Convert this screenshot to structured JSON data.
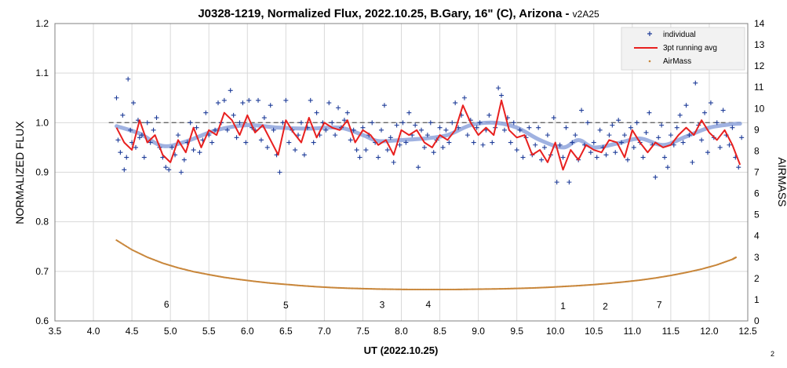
{
  "chart_data": {
    "type": "scatter",
    "title": "J0328-1219, Normalized Flux, 2022.10.25, B.Gary, 16\" (C), Arizona - ",
    "title_version": "v2A25",
    "xlabel": "UT (2022.10.25)",
    "ylabel": "NORMALIZED FLUX",
    "y2label": "AIRMASS",
    "xlim": [
      3.5,
      12.5
    ],
    "ylim": [
      0.6,
      1.2
    ],
    "y2lim": [
      0,
      14
    ],
    "x_ticks": [
      "3.5",
      "4.0",
      "4.5",
      "5.0",
      "5.5",
      "6.0",
      "6.5",
      "7.0",
      "7.5",
      "8.0",
      "8.5",
      "9.0",
      "9.5",
      "10.0",
      "10.5",
      "11.0",
      "11.5",
      "12.0",
      "12.5"
    ],
    "y_ticks": [
      "0.6",
      "0.7",
      "0.8",
      "0.9",
      "1.0",
      "1.1",
      "1.2"
    ],
    "y2_ticks": [
      "0",
      "1",
      "2",
      "3",
      "4",
      "5",
      "6",
      "7",
      "8",
      "9",
      "10",
      "11",
      "12",
      "13",
      "14"
    ],
    "grid": true,
    "legend_position": "top-right",
    "legend": [
      {
        "label": "individual",
        "color": "#1f3d99",
        "marker": "plus"
      },
      {
        "label": "3pt running avg",
        "color": "#e8201f",
        "marker": "line"
      },
      {
        "label": "AirMass",
        "color": "#c8863a",
        "marker": "dot"
      }
    ],
    "reference_line": {
      "y": 1.0,
      "style": "dashed",
      "color": "#666666"
    },
    "model_curve": {
      "color": "#8fa4dc",
      "x": [
        4.3,
        4.6,
        4.9,
        5.2,
        5.6,
        6.0,
        6.4,
        6.8,
        7.2,
        7.5,
        7.7,
        8.0,
        8.3,
        8.6,
        8.9,
        9.2,
        9.5,
        9.8,
        10.1,
        10.3,
        10.5,
        10.8,
        11.1,
        11.4,
        11.7,
        12.0,
        12.3,
        12.4
      ],
      "y": [
        0.993,
        0.978,
        0.953,
        0.962,
        0.985,
        0.995,
        0.99,
        0.988,
        0.99,
        0.975,
        0.963,
        0.965,
        0.968,
        0.975,
        0.995,
        1.0,
        0.99,
        0.965,
        0.95,
        0.965,
        0.95,
        0.958,
        0.968,
        0.955,
        0.972,
        0.99,
        0.997,
        0.998
      ]
    },
    "running_avg_points": [
      [
        4.3,
        0.99
      ],
      [
        4.4,
        0.96
      ],
      [
        4.5,
        0.945
      ],
      [
        4.6,
        1.005
      ],
      [
        4.7,
        0.96
      ],
      [
        4.8,
        0.975
      ],
      [
        4.9,
        0.935
      ],
      [
        5.0,
        0.92
      ],
      [
        5.1,
        0.965
      ],
      [
        5.2,
        0.94
      ],
      [
        5.3,
        0.99
      ],
      [
        5.4,
        0.95
      ],
      [
        5.5,
        0.985
      ],
      [
        5.6,
        0.975
      ],
      [
        5.7,
        1.02
      ],
      [
        5.8,
        1.005
      ],
      [
        5.9,
        0.975
      ],
      [
        6.0,
        1.015
      ],
      [
        6.1,
        0.98
      ],
      [
        6.2,
        0.995
      ],
      [
        6.3,
        0.965
      ],
      [
        6.4,
        0.935
      ],
      [
        6.5,
        1.005
      ],
      [
        6.6,
        0.98
      ],
      [
        6.7,
        0.96
      ],
      [
        6.8,
        1.01
      ],
      [
        6.9,
        0.97
      ],
      [
        7.0,
        1.0
      ],
      [
        7.1,
        0.99
      ],
      [
        7.2,
        0.985
      ],
      [
        7.3,
        1.005
      ],
      [
        7.4,
        0.96
      ],
      [
        7.5,
        0.985
      ],
      [
        7.6,
        0.975
      ],
      [
        7.7,
        0.955
      ],
      [
        7.8,
        0.965
      ],
      [
        7.9,
        0.935
      ],
      [
        8.0,
        0.985
      ],
      [
        8.1,
        0.975
      ],
      [
        8.2,
        0.985
      ],
      [
        8.3,
        0.96
      ],
      [
        8.4,
        0.95
      ],
      [
        8.5,
        0.975
      ],
      [
        8.6,
        0.965
      ],
      [
        8.7,
        0.985
      ],
      [
        8.8,
        1.035
      ],
      [
        8.9,
        1.0
      ],
      [
        9.0,
        0.975
      ],
      [
        9.1,
        0.99
      ],
      [
        9.2,
        0.975
      ],
      [
        9.3,
        1.045
      ],
      [
        9.4,
        0.985
      ],
      [
        9.5,
        0.97
      ],
      [
        9.6,
        0.975
      ],
      [
        9.7,
        0.935
      ],
      [
        9.8,
        0.945
      ],
      [
        9.9,
        0.92
      ],
      [
        10.0,
        0.96
      ],
      [
        10.1,
        0.905
      ],
      [
        10.2,
        0.945
      ],
      [
        10.3,
        0.925
      ],
      [
        10.4,
        0.955
      ],
      [
        10.5,
        0.945
      ],
      [
        10.6,
        0.94
      ],
      [
        10.7,
        0.965
      ],
      [
        10.8,
        0.96
      ],
      [
        10.9,
        0.93
      ],
      [
        11.0,
        0.985
      ],
      [
        11.1,
        0.96
      ],
      [
        11.2,
        0.94
      ],
      [
        11.3,
        0.96
      ],
      [
        11.4,
        0.95
      ],
      [
        11.5,
        0.955
      ],
      [
        11.6,
        0.975
      ],
      [
        11.7,
        0.99
      ],
      [
        11.8,
        0.975
      ],
      [
        11.9,
        1.005
      ],
      [
        12.0,
        0.98
      ],
      [
        12.1,
        0.965
      ],
      [
        12.2,
        0.985
      ],
      [
        12.3,
        0.955
      ],
      [
        12.4,
        0.915
      ]
    ],
    "airmass_points": [
      [
        4.3,
        3.8
      ],
      [
        4.5,
        3.35
      ],
      [
        4.7,
        3.0
      ],
      [
        4.9,
        2.72
      ],
      [
        5.1,
        2.5
      ],
      [
        5.3,
        2.32
      ],
      [
        5.5,
        2.18
      ],
      [
        5.7,
        2.05
      ],
      [
        5.9,
        1.95
      ],
      [
        6.1,
        1.86
      ],
      [
        6.3,
        1.78
      ],
      [
        6.5,
        1.72
      ],
      [
        6.7,
        1.66
      ],
      [
        6.9,
        1.61
      ],
      [
        7.1,
        1.57
      ],
      [
        7.3,
        1.54
      ],
      [
        7.5,
        1.52
      ],
      [
        7.7,
        1.5
      ],
      [
        7.9,
        1.49
      ],
      [
        8.1,
        1.48
      ],
      [
        8.3,
        1.48
      ],
      [
        8.5,
        1.48
      ],
      [
        8.7,
        1.48
      ],
      [
        8.9,
        1.49
      ],
      [
        9.1,
        1.5
      ],
      [
        9.3,
        1.51
      ],
      [
        9.5,
        1.53
      ],
      [
        9.7,
        1.55
      ],
      [
        9.9,
        1.58
      ],
      [
        10.1,
        1.62
      ],
      [
        10.3,
        1.66
      ],
      [
        10.5,
        1.71
      ],
      [
        10.7,
        1.77
      ],
      [
        10.9,
        1.84
      ],
      [
        11.1,
        1.92
      ],
      [
        11.3,
        2.02
      ],
      [
        11.5,
        2.14
      ],
      [
        11.7,
        2.28
      ],
      [
        11.9,
        2.44
      ],
      [
        12.1,
        2.64
      ],
      [
        12.3,
        2.9
      ],
      [
        12.35,
        3.0
      ]
    ],
    "individual_points": [
      [
        4.3,
        1.05
      ],
      [
        4.32,
        0.965
      ],
      [
        4.35,
        0.94
      ],
      [
        4.38,
        1.015
      ],
      [
        4.4,
        0.905
      ],
      [
        4.43,
        0.93
      ],
      [
        4.45,
        1.088
      ],
      [
        4.48,
        0.985
      ],
      [
        4.5,
        0.96
      ],
      [
        4.52,
        1.04
      ],
      [
        4.55,
        0.95
      ],
      [
        4.58,
        1.005
      ],
      [
        4.6,
        0.97
      ],
      [
        4.63,
        0.975
      ],
      [
        4.66,
        0.93
      ],
      [
        4.7,
        1.0
      ],
      [
        4.74,
        0.96
      ],
      [
        4.78,
        0.985
      ],
      [
        4.82,
        1.01
      ],
      [
        4.86,
        0.95
      ],
      [
        4.9,
        0.93
      ],
      [
        4.94,
        0.91
      ],
      [
        4.98,
        0.905
      ],
      [
        5.02,
        0.95
      ],
      [
        5.06,
        0.935
      ],
      [
        5.1,
        0.975
      ],
      [
        5.14,
        0.9
      ],
      [
        5.18,
        0.925
      ],
      [
        5.22,
        0.96
      ],
      [
        5.26,
        1.0
      ],
      [
        5.3,
        0.945
      ],
      [
        5.34,
        0.99
      ],
      [
        5.38,
        0.94
      ],
      [
        5.42,
        0.965
      ],
      [
        5.46,
        1.02
      ],
      [
        5.5,
        0.975
      ],
      [
        5.54,
        0.96
      ],
      [
        5.58,
        0.985
      ],
      [
        5.62,
        1.04
      ],
      [
        5.66,
        1.0
      ],
      [
        5.7,
        1.045
      ],
      [
        5.74,
        0.985
      ],
      [
        5.78,
        1.065
      ],
      [
        5.82,
        1.015
      ],
      [
        5.86,
        0.97
      ],
      [
        5.9,
        1.0
      ],
      [
        5.94,
        1.04
      ],
      [
        5.98,
        0.96
      ],
      [
        6.02,
        1.045
      ],
      [
        6.06,
        0.99
      ],
      [
        6.1,
        0.985
      ],
      [
        6.14,
        1.045
      ],
      [
        6.18,
        0.965
      ],
      [
        6.22,
        1.01
      ],
      [
        6.26,
        0.95
      ],
      [
        6.3,
        1.035
      ],
      [
        6.34,
        0.985
      ],
      [
        6.38,
        0.935
      ],
      [
        6.42,
        0.9
      ],
      [
        6.46,
        1.0
      ],
      [
        6.5,
        1.045
      ],
      [
        6.54,
        0.96
      ],
      [
        6.58,
        0.985
      ],
      [
        6.62,
        0.945
      ],
      [
        6.66,
        0.975
      ],
      [
        6.7,
        1.0
      ],
      [
        6.74,
        0.935
      ],
      [
        6.78,
        0.99
      ],
      [
        6.82,
        1.045
      ],
      [
        6.86,
        0.96
      ],
      [
        6.9,
        1.02
      ],
      [
        6.94,
        0.975
      ],
      [
        6.98,
        1.0
      ],
      [
        7.02,
        0.985
      ],
      [
        7.06,
        1.04
      ],
      [
        7.1,
        1.0
      ],
      [
        7.14,
        0.975
      ],
      [
        7.18,
        1.03
      ],
      [
        7.22,
        0.99
      ],
      [
        7.26,
        1.005
      ],
      [
        7.3,
        1.02
      ],
      [
        7.34,
        0.965
      ],
      [
        7.38,
        0.985
      ],
      [
        7.42,
        0.945
      ],
      [
        7.46,
        0.93
      ],
      [
        7.5,
        0.99
      ],
      [
        7.54,
        0.945
      ],
      [
        7.58,
        0.975
      ],
      [
        7.62,
        1.0
      ],
      [
        7.66,
        0.96
      ],
      [
        7.7,
        0.93
      ],
      [
        7.74,
        0.985
      ],
      [
        7.78,
        1.035
      ],
      [
        7.82,
        0.945
      ],
      [
        7.86,
        0.97
      ],
      [
        7.9,
        0.92
      ],
      [
        7.94,
        0.995
      ],
      [
        7.98,
        0.955
      ],
      [
        8.02,
        1.0
      ],
      [
        8.06,
        0.96
      ],
      [
        8.1,
        1.02
      ],
      [
        8.14,
        0.975
      ],
      [
        8.18,
        0.995
      ],
      [
        8.22,
        0.91
      ],
      [
        8.26,
        0.985
      ],
      [
        8.3,
        0.95
      ],
      [
        8.34,
        0.975
      ],
      [
        8.38,
        1.0
      ],
      [
        8.42,
        0.94
      ],
      [
        8.46,
        0.965
      ],
      [
        8.5,
        0.99
      ],
      [
        8.54,
        0.95
      ],
      [
        8.58,
        0.985
      ],
      [
        8.62,
        0.96
      ],
      [
        8.66,
        1.0
      ],
      [
        8.7,
        1.04
      ],
      [
        8.74,
        0.99
      ],
      [
        8.78,
        1.015
      ],
      [
        8.82,
        1.05
      ],
      [
        8.86,
        0.975
      ],
      [
        8.9,
        1.005
      ],
      [
        8.94,
        0.96
      ],
      [
        8.98,
        0.99
      ],
      [
        9.02,
        1.0
      ],
      [
        9.06,
        0.955
      ],
      [
        9.1,
        0.985
      ],
      [
        9.14,
        1.015
      ],
      [
        9.18,
        0.96
      ],
      [
        9.22,
        0.99
      ],
      [
        9.26,
        1.07
      ],
      [
        9.3,
        1.055
      ],
      [
        9.34,
        0.985
      ],
      [
        9.38,
        1.01
      ],
      [
        9.42,
        0.96
      ],
      [
        9.46,
        1.0
      ],
      [
        9.5,
        0.945
      ],
      [
        9.54,
        0.985
      ],
      [
        9.58,
        0.93
      ],
      [
        9.62,
        0.97
      ],
      [
        9.66,
        0.99
      ],
      [
        9.7,
        0.935
      ],
      [
        9.74,
        0.955
      ],
      [
        9.78,
        0.99
      ],
      [
        9.82,
        0.925
      ],
      [
        9.86,
        0.95
      ],
      [
        9.9,
        0.975
      ],
      [
        9.94,
        0.935
      ],
      [
        9.98,
        1.01
      ],
      [
        10.02,
        0.88
      ],
      [
        10.06,
        0.955
      ],
      [
        10.1,
        0.93
      ],
      [
        10.14,
        0.99
      ],
      [
        10.18,
        0.88
      ],
      [
        10.22,
        0.96
      ],
      [
        10.26,
        0.975
      ],
      [
        10.3,
        0.925
      ],
      [
        10.34,
        1.025
      ],
      [
        10.38,
        0.955
      ],
      [
        10.42,
        1.0
      ],
      [
        10.46,
        0.94
      ],
      [
        10.5,
        0.96
      ],
      [
        10.54,
        0.93
      ],
      [
        10.58,
        0.985
      ],
      [
        10.62,
        0.95
      ],
      [
        10.66,
        0.935
      ],
      [
        10.7,
        0.975
      ],
      [
        10.74,
        0.995
      ],
      [
        10.78,
        0.94
      ],
      [
        10.82,
        1.005
      ],
      [
        10.86,
        0.96
      ],
      [
        10.9,
        0.975
      ],
      [
        10.94,
        0.925
      ],
      [
        10.98,
        0.99
      ],
      [
        11.02,
        0.95
      ],
      [
        11.06,
        1.0
      ],
      [
        11.1,
        0.96
      ],
      [
        11.14,
        0.93
      ],
      [
        11.18,
        0.98
      ],
      [
        11.22,
        1.02
      ],
      [
        11.26,
        0.955
      ],
      [
        11.3,
        0.89
      ],
      [
        11.34,
        0.97
      ],
      [
        11.38,
        0.995
      ],
      [
        11.42,
        0.93
      ],
      [
        11.46,
        0.91
      ],
      [
        11.5,
        0.975
      ],
      [
        11.54,
        0.955
      ],
      [
        11.58,
        0.99
      ],
      [
        11.62,
        1.015
      ],
      [
        11.66,
        0.96
      ],
      [
        11.7,
        1.035
      ],
      [
        11.74,
        0.975
      ],
      [
        11.78,
        0.92
      ],
      [
        11.82,
        1.08
      ],
      [
        11.86,
        0.995
      ],
      [
        11.9,
        0.965
      ],
      [
        11.94,
        1.02
      ],
      [
        11.98,
        0.94
      ],
      [
        12.02,
        1.04
      ],
      [
        12.06,
        0.97
      ],
      [
        12.1,
        1.0
      ],
      [
        12.14,
        0.95
      ],
      [
        12.18,
        1.025
      ],
      [
        12.22,
        0.975
      ],
      [
        12.26,
        0.955
      ],
      [
        12.3,
        0.99
      ],
      [
        12.34,
        0.93
      ],
      [
        12.38,
        0.91
      ],
      [
        12.42,
        0.97
      ]
    ],
    "annotations": [
      {
        "text": "6",
        "x": 4.95,
        "y": 0.627
      },
      {
        "text": "5",
        "x": 6.5,
        "y": 0.625
      },
      {
        "text": "3",
        "x": 7.75,
        "y": 0.626
      },
      {
        "text": "4",
        "x": 8.35,
        "y": 0.627
      },
      {
        "text": "1",
        "x": 10.1,
        "y": 0.624
      },
      {
        "text": "2",
        "x": 10.65,
        "y": 0.623
      },
      {
        "text": "7",
        "x": 11.35,
        "y": 0.626
      }
    ],
    "page_number": "2"
  }
}
